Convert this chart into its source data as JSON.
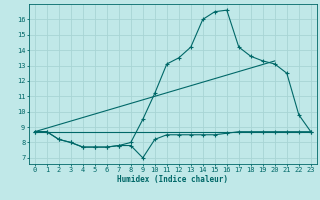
{
  "background_color": "#c0e8e8",
  "grid_color": "#a8d4d4",
  "line_color": "#006868",
  "marker": "+",
  "marker_size": 3,
  "xlabel": "Humidex (Indice chaleur)",
  "xlim": [
    -0.5,
    23.5
  ],
  "ylim": [
    6.6,
    17.0
  ],
  "xticks": [
    0,
    1,
    2,
    3,
    4,
    5,
    6,
    7,
    8,
    9,
    10,
    11,
    12,
    13,
    14,
    15,
    16,
    17,
    18,
    19,
    20,
    21,
    22,
    23
  ],
  "yticks": [
    7,
    8,
    9,
    10,
    11,
    12,
    13,
    14,
    15,
    16
  ],
  "series1_x": [
    0,
    1,
    2,
    3,
    4,
    5,
    6,
    7,
    8,
    9,
    10,
    11,
    12,
    13,
    14,
    15,
    16,
    17,
    18,
    19,
    20,
    21,
    22,
    23
  ],
  "series1_y": [
    8.7,
    8.7,
    8.2,
    8.0,
    7.7,
    7.7,
    7.7,
    7.8,
    7.8,
    7.0,
    8.2,
    8.5,
    8.5,
    8.5,
    8.5,
    8.5,
    8.6,
    8.7,
    8.7,
    8.7,
    8.7,
    8.7,
    8.7,
    8.7
  ],
  "series2_x": [
    0,
    1,
    2,
    3,
    4,
    5,
    6,
    7,
    8,
    9,
    10,
    11,
    12,
    13,
    14,
    15,
    16,
    17,
    18,
    19,
    20,
    21,
    22,
    23
  ],
  "series2_y": [
    8.7,
    8.7,
    8.2,
    8.0,
    7.7,
    7.7,
    7.7,
    7.8,
    8.0,
    9.5,
    11.2,
    13.1,
    13.5,
    14.2,
    16.0,
    16.5,
    16.6,
    14.2,
    13.6,
    13.3,
    13.1,
    12.5,
    9.8,
    8.7
  ],
  "series3_x": [
    0,
    23
  ],
  "series3_y": [
    8.7,
    8.7
  ],
  "series4_x": [
    0,
    20
  ],
  "series4_y": [
    8.7,
    13.3
  ]
}
